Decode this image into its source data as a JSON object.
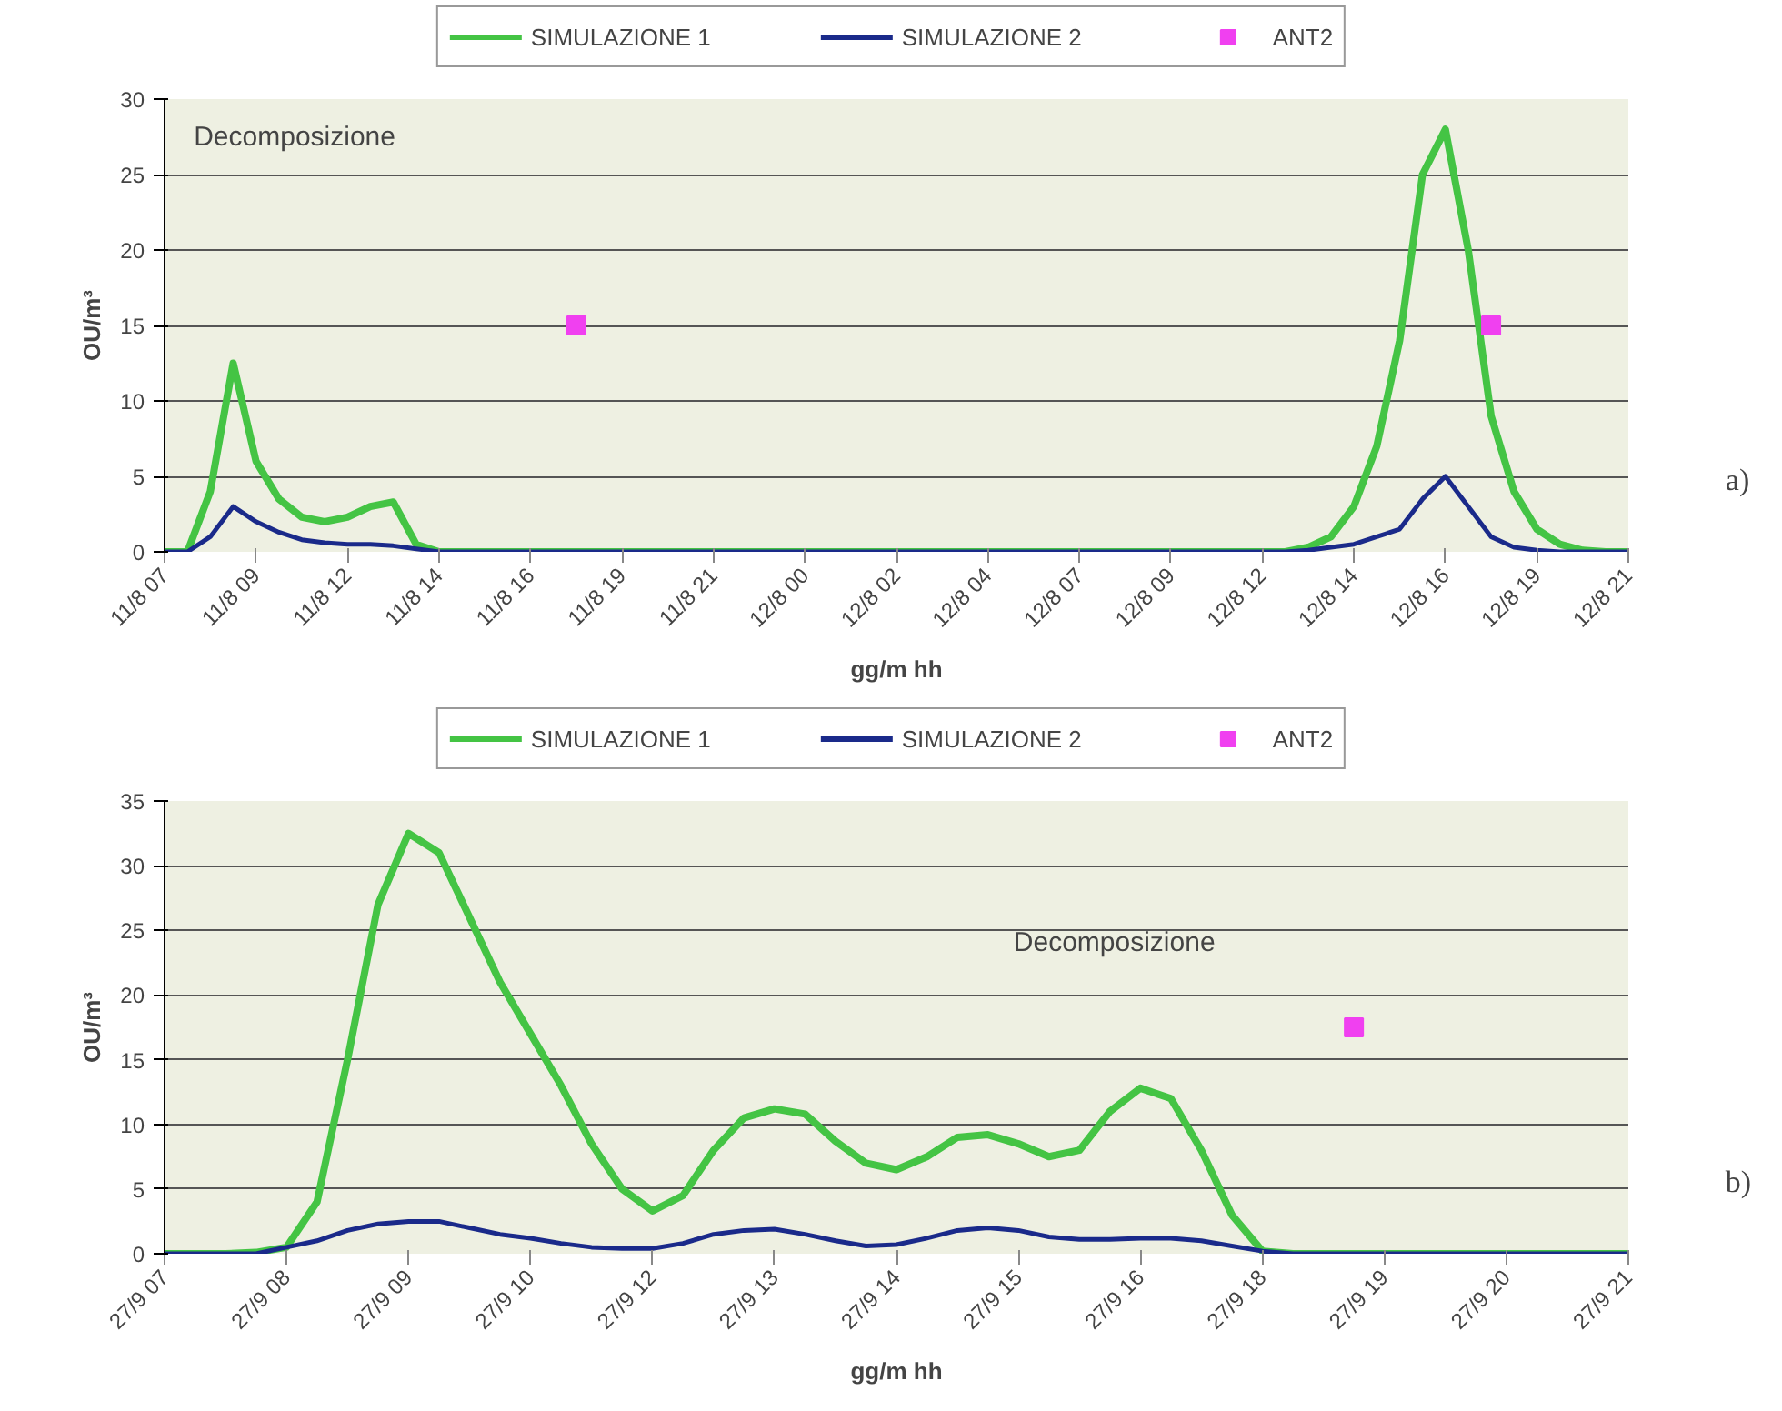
{
  "chart_data": [
    {
      "type": "line",
      "xlabel": "gg/m hh",
      "ylabel": "OU/m³",
      "ylim": [
        0,
        30
      ],
      "yticks": [
        0,
        5,
        10,
        15,
        20,
        25,
        30
      ],
      "grid": "y",
      "legend": "top",
      "line_style": "solid",
      "categories": [
        "11/8 07",
        null,
        null,
        null,
        "11/8 09",
        null,
        null,
        null,
        "11/8 12",
        null,
        null,
        null,
        "11/8 14",
        null,
        null,
        null,
        "11/8 16",
        null,
        null,
        null,
        "11/8 19",
        null,
        null,
        null,
        "11/8 21",
        null,
        null,
        null,
        "12/8 00",
        null,
        null,
        null,
        "12/8 02",
        null,
        null,
        null,
        "12/8 04",
        null,
        null,
        null,
        "12/8 07",
        null,
        null,
        null,
        "12/8 09",
        null,
        null,
        null,
        "12/8 12",
        null,
        null,
        null,
        "12/8 14",
        null,
        null,
        null,
        "12/8 16",
        null,
        null,
        null,
        "12/8 19",
        null,
        null,
        null,
        "12/8 21"
      ],
      "series": [
        {
          "name": "SIMULAZIONE 1",
          "color": "#44c444",
          "marker": "none",
          "values": [
            0,
            0,
            4,
            12.5,
            6,
            3.5,
            2.3,
            2,
            2.3,
            3,
            3.3,
            0.5,
            0,
            0,
            0,
            0,
            0,
            0,
            0,
            0,
            0,
            0,
            0,
            0,
            0,
            0,
            0,
            0,
            0,
            0,
            0,
            0,
            0,
            0,
            0,
            0,
            0,
            0,
            0,
            0,
            0,
            0,
            0,
            0,
            0,
            0,
            0,
            0,
            0,
            0,
            0.3,
            1,
            3,
            7,
            14,
            25,
            28,
            20,
            9,
            4,
            1.5,
            0.5,
            0.1,
            0,
            0
          ]
        },
        {
          "name": "SIMULAZIONE 2",
          "color": "#1a2a8a",
          "marker": "none",
          "values": [
            0,
            0,
            1,
            3,
            2,
            1.3,
            0.8,
            0.6,
            0.5,
            0.5,
            0.4,
            0.2,
            0,
            0,
            0,
            0,
            0,
            0,
            0,
            0,
            0,
            0,
            0,
            0,
            0,
            0,
            0,
            0,
            0,
            0,
            0,
            0,
            0,
            0,
            0,
            0,
            0,
            0,
            0,
            0,
            0,
            0,
            0,
            0,
            0,
            0,
            0,
            0,
            0,
            0,
            0.1,
            0.3,
            0.5,
            1,
            1.5,
            3.5,
            5,
            3,
            1,
            0.3,
            0.1,
            0,
            0,
            0,
            0
          ]
        },
        {
          "name": "ANT2",
          "color": "#f040f0",
          "type": "scatter",
          "marker": "square",
          "values": [
            null,
            null,
            null,
            null,
            null,
            null,
            null,
            null,
            null,
            null,
            null,
            null,
            null,
            null,
            null,
            null,
            null,
            null,
            15,
            null,
            null,
            null,
            null,
            null,
            null,
            null,
            null,
            null,
            null,
            null,
            null,
            null,
            null,
            null,
            null,
            null,
            null,
            null,
            null,
            null,
            null,
            null,
            null,
            null,
            null,
            null,
            null,
            null,
            null,
            null,
            null,
            null,
            null,
            null,
            null,
            null,
            null,
            null,
            15,
            null,
            null,
            null,
            null,
            null,
            null
          ]
        }
      ],
      "annotations": [
        "Decomposizione",
        "a)"
      ]
    },
    {
      "type": "line",
      "xlabel": "gg/m hh",
      "ylabel": "OU/m³",
      "ylim": [
        0,
        35
      ],
      "yticks": [
        0,
        5,
        10,
        15,
        20,
        25,
        30,
        35
      ],
      "grid": "y",
      "legend": "top",
      "line_style": "solid",
      "categories": [
        "27/9 07",
        null,
        null,
        null,
        "27/9 08",
        null,
        null,
        null,
        "27/9 09",
        null,
        null,
        null,
        "27/9 10",
        null,
        null,
        null,
        "27/9 12",
        null,
        null,
        null,
        "27/9 13",
        null,
        null,
        null,
        "27/9 14",
        null,
        null,
        null,
        "27/9 15",
        null,
        null,
        null,
        "27/9 16",
        null,
        null,
        null,
        "27/9 18",
        null,
        null,
        null,
        "27/9 19",
        null,
        null,
        null,
        "27/9 20",
        null,
        null,
        null,
        "27/9 21"
      ],
      "series": [
        {
          "name": "SIMULAZIONE 1",
          "color": "#44c444",
          "marker": "none",
          "values": [
            0,
            0,
            0,
            0.1,
            0.5,
            4,
            15,
            27,
            32.5,
            31,
            26,
            21,
            17,
            13,
            8.5,
            5,
            3.3,
            4.5,
            8,
            10.5,
            11.2,
            10.8,
            8.7,
            7,
            6.5,
            7.5,
            9,
            9.2,
            8.5,
            7.5,
            8,
            11,
            12.8,
            12,
            8,
            3,
            0.2,
            0,
            0,
            0,
            0,
            0,
            0,
            0,
            0,
            0,
            0,
            0,
            0
          ]
        },
        {
          "name": "SIMULAZIONE 2",
          "color": "#1a2a8a",
          "marker": "none",
          "values": [
            0,
            0,
            0,
            0,
            0.5,
            1,
            1.8,
            2.3,
            2.5,
            2.5,
            2,
            1.5,
            1.2,
            0.8,
            0.5,
            0.4,
            0.4,
            0.8,
            1.5,
            1.8,
            1.9,
            1.5,
            1,
            0.6,
            0.7,
            1.2,
            1.8,
            2,
            1.8,
            1.3,
            1.1,
            1.1,
            1.2,
            1.2,
            1,
            0.6,
            0.2,
            0,
            0,
            0,
            0,
            0,
            0,
            0,
            0,
            0,
            0,
            0,
            0
          ]
        },
        {
          "name": "ANT2",
          "color": "#f040f0",
          "type": "scatter",
          "marker": "square",
          "values": [
            null,
            null,
            null,
            null,
            null,
            null,
            null,
            null,
            null,
            null,
            null,
            null,
            null,
            null,
            null,
            null,
            null,
            null,
            null,
            null,
            null,
            null,
            null,
            null,
            null,
            null,
            null,
            null,
            null,
            null,
            null,
            null,
            null,
            null,
            null,
            null,
            null,
            null,
            null,
            17.5,
            null,
            null,
            null,
            null,
            null,
            null,
            null,
            null,
            null
          ]
        }
      ],
      "annotations": [
        "Decomposizione",
        "b)"
      ]
    }
  ]
}
